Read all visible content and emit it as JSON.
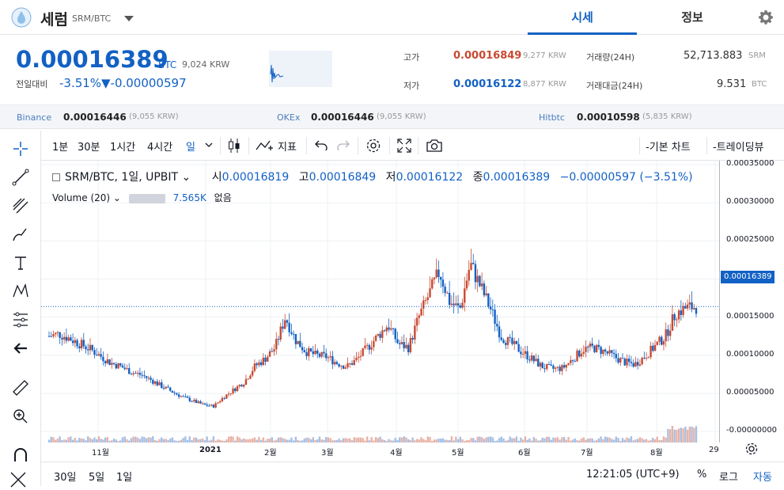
{
  "header": {
    "coin_name": "세럼",
    "pair": "SRM/BTC",
    "tabs": [
      "시세",
      "정보"
    ]
  },
  "summary": {
    "price": "0.00016389",
    "price_unit": "BTC",
    "price_krw": "9,024",
    "price_krw_unit": "KRW",
    "change_label": "전일대비",
    "change_pct": "-3.51%",
    "change_amount": "▼-0.00000597",
    "high_label": "고가",
    "high_value": "0.00016849",
    "high_krw": "9,277",
    "low_label": "저가",
    "low_value": "0.00016122",
    "low_krw": "8,877",
    "krw_unit": "KRW",
    "volume_label": "거래량(24H)",
    "volume_value": "52,713.883",
    "volume_unit": "SRM",
    "amount_label": "거래대금(24H)",
    "amount_value": "9.531",
    "amount_unit": "BTC"
  },
  "exchanges": [
    {
      "name": "Binance",
      "price": "0.00016446",
      "krw": "(9,055 KRW)"
    },
    {
      "name": "OKEx",
      "price": "0.00016446",
      "krw": "(9,055 KRW)"
    },
    {
      "name": "Hitbtc",
      "price": "0.00010598",
      "krw": "(5,835 KRW)"
    }
  ],
  "toolbar": {
    "intervals": [
      "1분",
      "30분",
      "1시간",
      "4시간",
      "일"
    ],
    "indicators": "지표",
    "basic_chart": "-기본 차트",
    "tradingview": "-트레이딩뷰"
  },
  "legend": {
    "title": "SRM/BTC, 1일, UPBIT",
    "open_label": "시",
    "open": "0.00016819",
    "high_label": "고",
    "high": "0.00016849",
    "low_label": "저",
    "low": "0.00016122",
    "close_label": "종",
    "close": "0.00016389",
    "change": "−0.00000597 (−3.51%)",
    "volume_title": "Volume (20)",
    "volume_value": "7.565K",
    "volume_none": "없음"
  },
  "price_tag": "0.00016389",
  "bottom": {
    "ranges": [
      "30일",
      "5일",
      "1일"
    ],
    "time": "12:21:05 (UTC+9)",
    "percent": "%",
    "log": "로그",
    "auto": "자동"
  },
  "colors": {
    "up": "#c84a31",
    "down": "#1261c4",
    "accent": "#1261c4"
  },
  "chart_data": {
    "type": "candlestick",
    "y_ticks": [
      "0.00035000",
      "0.00030000",
      "0.00025000",
      "0.00020000",
      "0.00015000",
      "0.00010000",
      "0.00005000",
      "-0.00000000"
    ],
    "x_ticks": [
      "11월",
      "2021",
      "2월",
      "3월",
      "4월",
      "5월",
      "6월",
      "7월",
      "8월",
      "29"
    ],
    "ylim": [
      0,
      0.00035
    ],
    "closes": [
      0.000125,
      0.000128,
      0.000122,
      0.000115,
      0.000108,
      9.9e-05,
      9e-05,
      8.5e-05,
      7.8e-05,
      7.4e-05,
      6.7e-05,
      5.9e-05,
      5.2e-05,
      4.5e-05,
      4e-05,
      3.5e-05,
      3.3e-05,
      4.5e-05,
      5.5e-05,
      6.5e-05,
      8.5e-05,
      9.5e-05,
      0.00011,
      0.00015,
      0.00012,
      0.000105,
      0.0001,
      9.8e-05,
      9e-05,
      8.5e-05,
      9.5e-05,
      0.00011,
      0.000125,
      0.00014,
      0.000115,
      0.00011,
      0.00015,
      0.00018,
      0.00021,
      0.00017,
      0.00016,
      0.00022,
      0.00019,
      0.00016,
      0.000125,
      0.000115,
      0.000105,
      9.5e-05,
      8.5e-05,
      8.2e-05,
      8.3e-05,
      9.5e-05,
      0.000108,
      0.00011,
      0.000105,
      9.8e-05,
      9.1e-05,
      8.8e-05,
      9.85e-05,
      0.000112,
      0.000125,
      0.000155,
      0.000162,
      0.00016389
    ],
    "volume_label_series": "Volume"
  }
}
